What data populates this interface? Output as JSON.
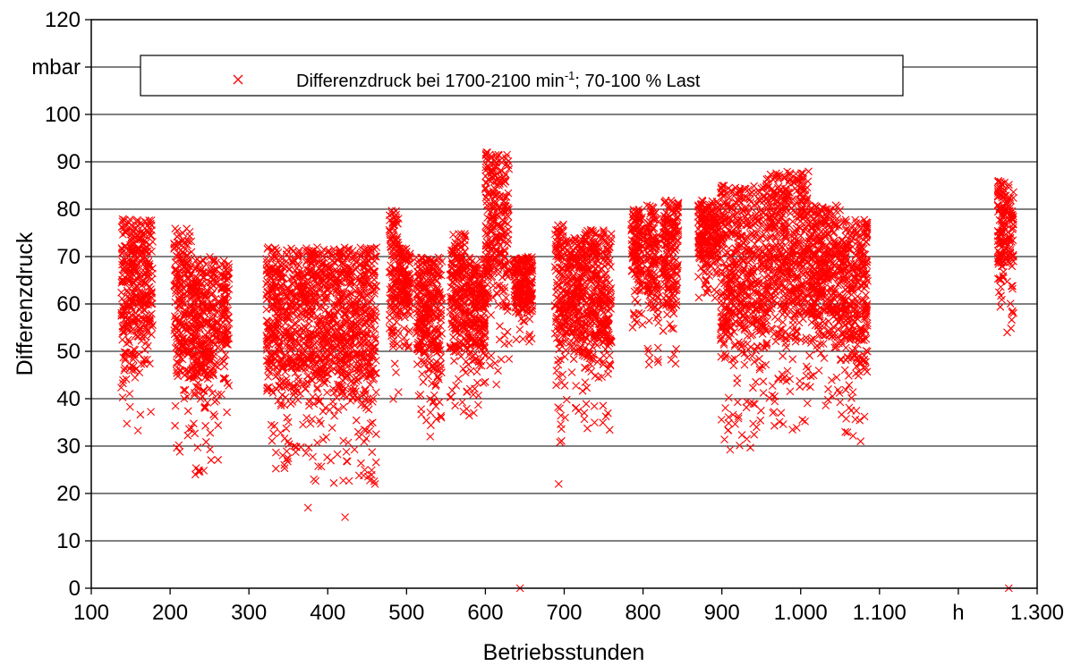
{
  "chart_data": {
    "type": "scatter",
    "xlabel": "Betriebsstunden",
    "ylabel": "Differenzdruck",
    "x_unit": "h",
    "y_unit": "mbar",
    "xlim": [
      100,
      1300
    ],
    "ylim": [
      0,
      120
    ],
    "x_ticks": [
      {
        "value": 100,
        "label": "100"
      },
      {
        "value": 200,
        "label": "200"
      },
      {
        "value": 300,
        "label": "300"
      },
      {
        "value": 400,
        "label": "400"
      },
      {
        "value": 500,
        "label": "500"
      },
      {
        "value": 600,
        "label": "600"
      },
      {
        "value": 700,
        "label": "700"
      },
      {
        "value": 800,
        "label": "800"
      },
      {
        "value": 900,
        "label": "900"
      },
      {
        "value": 1000,
        "label": "1.000"
      },
      {
        "value": 1100,
        "label": "1.100"
      },
      {
        "value": 1200,
        "label": "h"
      },
      {
        "value": 1300,
        "label": "1.300"
      }
    ],
    "y_ticks": [
      {
        "value": 0,
        "label": "0"
      },
      {
        "value": 10,
        "label": "10"
      },
      {
        "value": 20,
        "label": "20"
      },
      {
        "value": 30,
        "label": "30"
      },
      {
        "value": 40,
        "label": "40"
      },
      {
        "value": 50,
        "label": "50"
      },
      {
        "value": 60,
        "label": "60"
      },
      {
        "value": 70,
        "label": "70"
      },
      {
        "value": 80,
        "label": "80"
      },
      {
        "value": 90,
        "label": "90"
      },
      {
        "value": 100,
        "label": "100"
      },
      {
        "value": 110,
        "label": "mbar"
      },
      {
        "value": 120,
        "label": "120"
      }
    ],
    "grid": "horizontal",
    "legend_position": "top",
    "legend": {
      "text_before_sup": "Differenzdruck bei 1700-2100 min",
      "sup": "-1",
      "text_after_sup": "; 70-100 % Last",
      "marker": "x"
    },
    "series": [
      {
        "name": "Differenzdruck bei 1700-2100 min-1; 70-100 % Last",
        "color": "#ff0000",
        "marker": "x",
        "clusters": [
          {
            "x": [
              138,
              178
            ],
            "ymin": 33,
            "ymax": 78
          },
          {
            "x": [
              205,
              228
            ],
            "ymin": 27,
            "ymax": 76
          },
          {
            "x": [
              228,
              262
            ],
            "ymin": 24,
            "ymax": 70
          },
          {
            "x": [
              265,
              275
            ],
            "ymin": 36,
            "ymax": 70
          },
          {
            "x": [
              322,
              380
            ],
            "ymin": 25,
            "ymax": 72
          },
          {
            "x": [
              380,
              462
            ],
            "ymin": 22,
            "ymax": 72
          },
          {
            "x": [
              478,
              490
            ],
            "ymin": 39,
            "ymax": 80
          },
          {
            "x": [
              490,
              505
            ],
            "ymin": 50,
            "ymax": 72
          },
          {
            "x": [
              512,
              545
            ],
            "ymin": 33,
            "ymax": 70
          },
          {
            "x": [
              555,
              575
            ],
            "ymin": 37,
            "ymax": 75
          },
          {
            "x": [
              575,
              600
            ],
            "ymin": 35,
            "ymax": 70
          },
          {
            "x": [
              600,
              630
            ],
            "ymin": 45,
            "ymax": 92
          },
          {
            "x": [
              636,
              660
            ],
            "ymin": 52,
            "ymax": 70
          },
          {
            "x": [
              688,
              700
            ],
            "ymin": 30,
            "ymax": 77
          },
          {
            "x": [
              700,
              725
            ],
            "ymin": 36,
            "ymax": 74
          },
          {
            "x": [
              725,
              760
            ],
            "ymin": 32,
            "ymax": 76
          },
          {
            "x": [
              785,
              800
            ],
            "ymin": 55,
            "ymax": 80
          },
          {
            "x": [
              805,
              820
            ],
            "ymin": 47,
            "ymax": 81
          },
          {
            "x": [
              825,
              845
            ],
            "ymin": 47,
            "ymax": 82
          },
          {
            "x": [
              870,
              895
            ],
            "ymin": 60,
            "ymax": 82
          },
          {
            "x": [
              898,
              955
            ],
            "ymin": 29,
            "ymax": 85
          },
          {
            "x": [
              955,
              1010
            ],
            "ymin": 33,
            "ymax": 88
          },
          {
            "x": [
              1010,
              1050
            ],
            "ymin": 38,
            "ymax": 81
          },
          {
            "x": [
              1050,
              1085
            ],
            "ymin": 31,
            "ymax": 78
          },
          {
            "x": [
              1250,
              1270
            ],
            "ymin": 54,
            "ymax": 86
          }
        ],
        "outliers": [
          [
            375,
            17
          ],
          [
            422,
            15
          ],
          [
            693,
            22
          ],
          [
            644,
            0
          ],
          [
            1264,
            0
          ],
          [
            232,
            24
          ],
          [
            460,
            22
          ],
          [
            345,
            26
          ],
          [
            447,
            25
          ],
          [
            530,
            32
          ],
          [
            614,
            43
          ],
          [
            1076,
            31
          ],
          [
            1262,
            54
          ]
        ]
      }
    ]
  }
}
